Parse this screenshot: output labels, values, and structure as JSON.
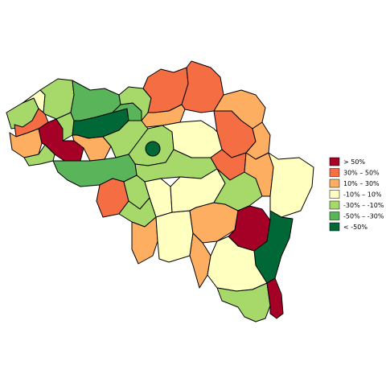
{
  "map": {
    "colors": {
      "gt50": "#a50026",
      "p30_50": "#f46d43",
      "p10_30": "#fdae61",
      "m10_10": "#ffffbf",
      "m30_m10": "#a6d96a",
      "m50_m30": "#5ab45a",
      "lt_m50": "#006837"
    },
    "legend": [
      {
        "key": "gt50",
        "label": ">  50%"
      },
      {
        "key": "p30_50",
        "label": "30%  –   50%"
      },
      {
        "key": "p10_30",
        "label": "10%  –   30%"
      },
      {
        "key": "m10_10",
        "label": "-10%  –   10%"
      },
      {
        "key": "m30_m10",
        "label": "-30%  –  -10%"
      },
      {
        "key": "m50_m30",
        "label": "-50%  –  -30%"
      },
      {
        "key": "lt_m50",
        "label": "<  -50%"
      }
    ]
  }
}
